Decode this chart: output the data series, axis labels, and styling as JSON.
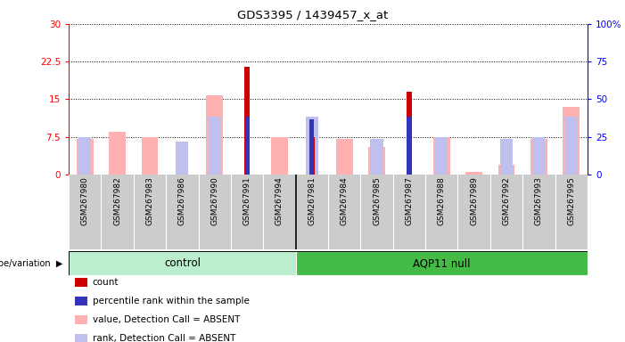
{
  "title": "GDS3395 / 1439457_x_at",
  "samples": [
    "GSM267980",
    "GSM267982",
    "GSM267983",
    "GSM267986",
    "GSM267990",
    "GSM267991",
    "GSM267994",
    "GSM267981",
    "GSM267984",
    "GSM267985",
    "GSM267987",
    "GSM267988",
    "GSM267989",
    "GSM267992",
    "GSM267993",
    "GSM267995"
  ],
  "n_control": 7,
  "count": [
    0.0,
    0.0,
    0.0,
    0.0,
    0.0,
    21.5,
    0.0,
    7.5,
    0.0,
    0.0,
    16.5,
    0.0,
    0.0,
    0.0,
    0.0,
    0.0
  ],
  "percentile_rank": [
    0.0,
    0.0,
    0.0,
    0.0,
    0.0,
    11.5,
    0.0,
    11.0,
    0.0,
    0.0,
    11.5,
    0.0,
    0.0,
    0.0,
    0.0,
    0.0
  ],
  "value_absent": [
    7.0,
    8.5,
    7.5,
    0.0,
    15.8,
    0.0,
    7.5,
    0.0,
    7.0,
    5.5,
    0.0,
    7.5,
    0.5,
    2.0,
    7.0,
    13.5
  ],
  "rank_absent": [
    7.5,
    0.0,
    0.0,
    6.5,
    11.5,
    0.0,
    0.0,
    11.5,
    0.0,
    7.0,
    0.0,
    7.5,
    0.0,
    7.0,
    7.5,
    11.5
  ],
  "ylim_left": [
    0,
    30
  ],
  "ylim_right": [
    0,
    100
  ],
  "yticks_left": [
    0,
    7.5,
    15,
    22.5,
    30
  ],
  "ytick_labels_left": [
    "0",
    "7.5",
    "15",
    "22.5",
    "30"
  ],
  "ytick_labels_right": [
    "0",
    "25",
    "50",
    "75",
    "100%"
  ],
  "color_count": "#cc0000",
  "color_rank": "#3333bb",
  "color_value_absent": "#ffb0b0",
  "color_rank_absent": "#c0c0ee",
  "color_control_bg": "#bbeecc",
  "color_aqp11_bg": "#44bb44",
  "color_xband": "#cccccc",
  "legend_labels": [
    "count",
    "percentile rank within the sample",
    "value, Detection Call = ABSENT",
    "rank, Detection Call = ABSENT"
  ]
}
